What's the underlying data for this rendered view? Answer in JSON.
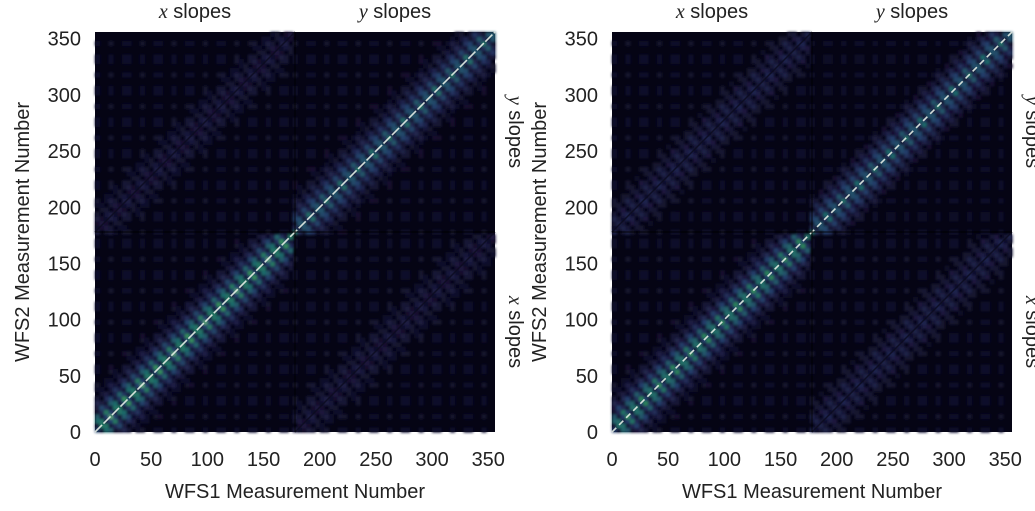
{
  "figure": {
    "panel_count": 2
  },
  "chart_data": [
    {
      "type": "heatmap",
      "title": "",
      "xlabel": "WFS1 Measurement Number",
      "ylabel": "WFS2 Measurement Number",
      "xlim": [
        0,
        356
      ],
      "ylim": [
        0,
        356
      ],
      "xticks": [
        "0",
        "50",
        "100",
        "150",
        "200",
        "250",
        "300",
        "350"
      ],
      "yticks": [
        "0",
        "50",
        "100",
        "150",
        "200",
        "250",
        "300",
        "350"
      ],
      "block_split": 178,
      "top_labels": [
        {
          "var": "x",
          "text": " slopes"
        },
        {
          "var": "y",
          "text": " slopes"
        }
      ],
      "right_labels": [
        {
          "var": "y",
          "text": " slopes"
        },
        {
          "var": "x",
          "text": " slopes"
        }
      ],
      "colormap": [
        "#050414",
        "#1e1d44",
        "#243d6b",
        "#1f6a6a",
        "#2e8b55",
        "#c8dcc8"
      ],
      "description_values": {
        "diagonal_peak": 1.0,
        "background": 0.05,
        "xx_block_band_strength": 0.75,
        "yy_block_band_strength": 0.55,
        "cross_block_strength": 0.12
      }
    },
    {
      "type": "heatmap",
      "title": "",
      "xlabel": "WFS1 Measurement Number",
      "ylabel": "WFS2 Measurement Number",
      "xlim": [
        0,
        356
      ],
      "ylim": [
        0,
        356
      ],
      "xticks": [
        "0",
        "50",
        "100",
        "150",
        "200",
        "250",
        "300",
        "350"
      ],
      "yticks": [
        "0",
        "50",
        "100",
        "150",
        "200",
        "250",
        "300",
        "350"
      ],
      "block_split": 178,
      "top_labels": [
        {
          "var": "x",
          "text": " slopes"
        },
        {
          "var": "y",
          "text": " slopes"
        }
      ],
      "right_labels": [
        {
          "var": "y",
          "text": " slopes"
        },
        {
          "var": "x",
          "text": " slopes"
        }
      ],
      "colormap": [
        "#050414",
        "#1e1d44",
        "#243d6b",
        "#1f6a6a",
        "#2e8b55",
        "#c8dcc8"
      ],
      "description_values": {
        "diagonal_peak": 1.0,
        "background": 0.05,
        "xx_block_band_strength": 0.7,
        "yy_block_band_strength": 0.6,
        "cross_block_strength": 0.18
      }
    }
  ]
}
